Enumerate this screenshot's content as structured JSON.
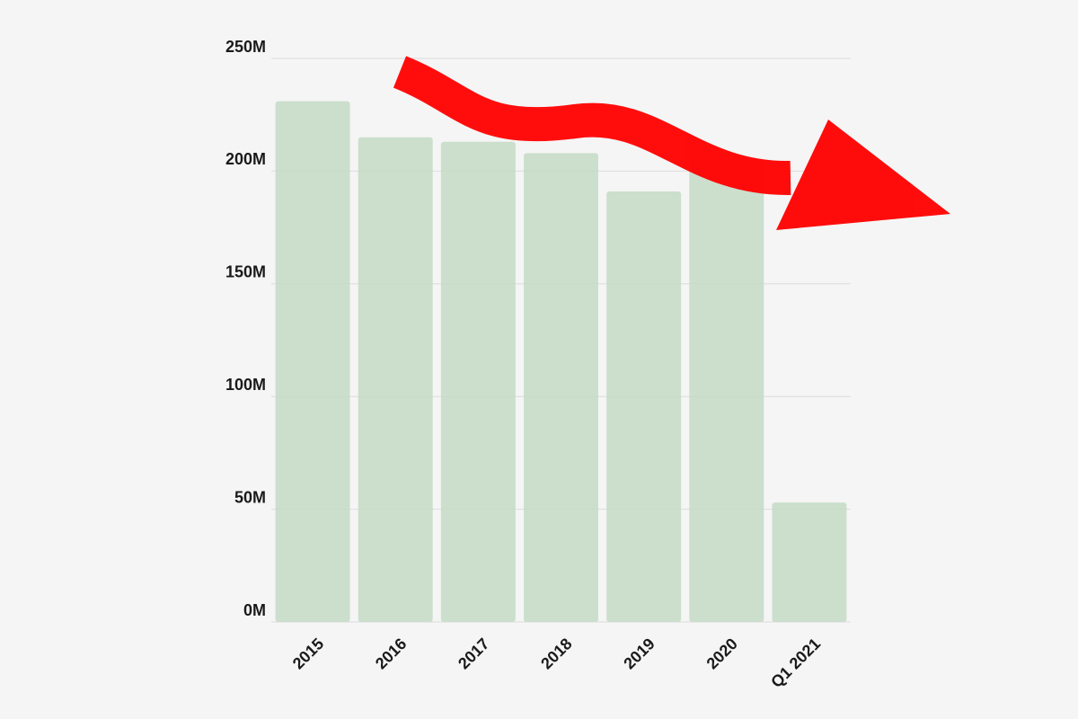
{
  "chart_data": {
    "type": "bar",
    "categories": [
      "2015",
      "2016",
      "2017",
      "2018",
      "2019",
      "2020",
      "Q1 2021"
    ],
    "values": [
      231,
      215,
      213,
      208,
      191,
      205,
      53
    ],
    "color": "#c3dbc4",
    "ylim": [
      0,
      250
    ],
    "yticks": [
      {
        "value": 0,
        "label": "0M"
      },
      {
        "value": 50,
        "label": "50M"
      },
      {
        "value": 100,
        "label": "100M"
      },
      {
        "value": 150,
        "label": "150M"
      },
      {
        "value": 200,
        "label": "200M"
      },
      {
        "value": 250,
        "label": "250M"
      }
    ],
    "grid": true
  }
}
